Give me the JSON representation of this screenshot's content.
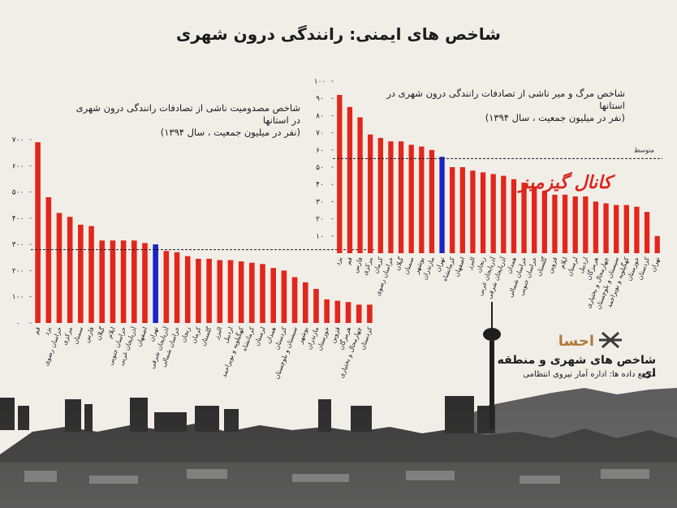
{
  "title": "شاخص های ایمنی: رانندگی درون شهری",
  "watermark": "کانال گیزمیز",
  "brand": {
    "name": "شاخص های شهری و منطقه ای",
    "source": "مرجع داده ها: اداره آمار نیروی انتظامی",
    "logo_text": "احسان"
  },
  "colors": {
    "bar": "#e2261c",
    "highlight": "#1b23c4",
    "avg_line": "#1c1c1c"
  },
  "chart_data": [
    {
      "id": "injury",
      "type": "bar",
      "title": "شاخص مصدومیت ناشی از تصادفات رانندگی درون شهری در استانها",
      "subtitle": "(نفر در میلیون جمعیت ، سال ۱۳۹۴)",
      "ylim": [
        0,
        700
      ],
      "yticks": [
        "۰",
        "۱۰۰",
        "۲۰۰",
        "۳۰۰",
        "۴۰۰",
        "۵۰۰",
        "۶۰۰",
        "۷۰۰"
      ],
      "ytick_values": [
        0,
        100,
        200,
        300,
        400,
        500,
        600,
        700
      ],
      "average": 280,
      "highlight": "تهران",
      "categories": [
        "قم",
        "یزد",
        "خراسان رضوی",
        "مرکزی",
        "سمنان",
        "فارس",
        "گیلان",
        "ایلام",
        "خراسان جنوبی",
        "آذربایجان غربی",
        "اصفهان",
        "تهران",
        "آذربایجان شرقی",
        "خراسان شمالی",
        "زنجان",
        "کرمان",
        "گلستان",
        "البرز",
        "اردبیل",
        "کهگیلویه و بویراحمد",
        "کرمانشاه",
        "لرستان",
        "همدان",
        "کردستان",
        "سیستان و بلوچستان",
        "بوشهر",
        "مازندران",
        "خوزستان",
        "قزوین",
        "هرمزگان",
        "چهارمحال و بختیاری",
        "کردستان"
      ],
      "values": [
        690,
        480,
        420,
        405,
        375,
        370,
        315,
        315,
        315,
        315,
        305,
        300,
        275,
        270,
        255,
        245,
        245,
        240,
        240,
        235,
        230,
        225,
        210,
        200,
        175,
        155,
        130,
        90,
        85,
        80,
        70,
        70
      ]
    },
    {
      "id": "death",
      "type": "bar",
      "title": "شاخص مرگ و میر ناشی از تصادفات رانندگی درون شهری در استانها",
      "subtitle": "(نفر در میلیون جمعیت ، سال ۱۳۹۴)",
      "ylim": [
        0,
        100
      ],
      "yticks": [
        "۱۰",
        "۲۰",
        "۳۰",
        "۴۰",
        "۵۰",
        "۶۰",
        "۷۰",
        "۸۰",
        "۹۰",
        "۱۰۰"
      ],
      "ytick_values": [
        10,
        20,
        30,
        40,
        50,
        60,
        70,
        80,
        90,
        100
      ],
      "average": 55,
      "average_label": "متوسط",
      "highlight": "تهران",
      "categories": [
        "یزد",
        "قم",
        "فارس",
        "مرکزی",
        "کرمان",
        "خراسان رضوی",
        "گیلان",
        "سمنان",
        "بوشهر",
        "مازندران",
        "تهران",
        "کرمانشاه",
        "اصفهان",
        "البرز",
        "زنجان",
        "آذربایجان غربی",
        "آذربایجان شرقی",
        "همدان",
        "خراسان شمالی",
        "خراسان جنوبی",
        "گلستان",
        "قزوین",
        "ایلام",
        "لرستان",
        "اردبیل",
        "هرمزگان",
        "چهارمحال و بختیاری",
        "سیستان و بلوچستان",
        "کهگیلویه و بویراحمد",
        "خوزستان",
        "کردستان",
        "تهران"
      ],
      "values": [
        92,
        85,
        79,
        69,
        67,
        65,
        65,
        63,
        62,
        60,
        56,
        50,
        50,
        48,
        47,
        46,
        45,
        43,
        41,
        38,
        36,
        34,
        34,
        33,
        33,
        30,
        29,
        28,
        28,
        27,
        24,
        10
      ]
    }
  ]
}
